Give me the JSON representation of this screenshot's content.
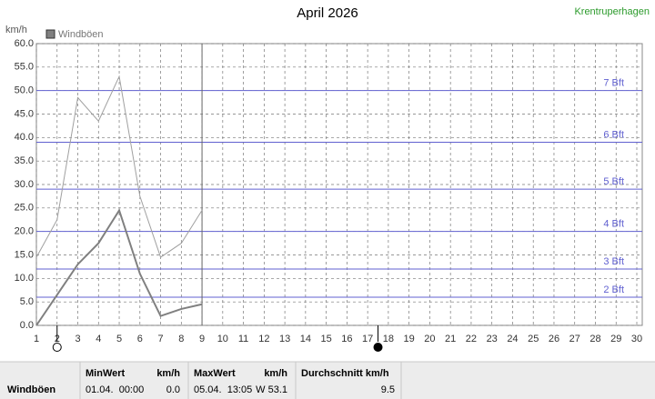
{
  "chart_data": {
    "type": "line",
    "title": "April 2026",
    "station": "Krentruperhagen",
    "y_label": "km/h",
    "x": [
      1,
      2,
      3,
      4,
      5,
      6,
      7,
      8,
      9
    ],
    "series": [
      {
        "name": "Windböen",
        "color": "#808080",
        "width": 2,
        "values": [
          0,
          6.5,
          13,
          17.5,
          24.5,
          11,
          2,
          3.5,
          4.5
        ]
      },
      {
        "color": "#a0a0a0",
        "width": 1,
        "values": [
          14.5,
          22.5,
          48.5,
          43.5,
          53,
          27.5,
          14.5,
          17.5,
          24.5
        ]
      }
    ],
    "xlim": [
      1,
      30
    ],
    "xticks": [
      1,
      2,
      3,
      4,
      5,
      6,
      7,
      8,
      9,
      10,
      11,
      12,
      13,
      14,
      15,
      16,
      17,
      18,
      19,
      20,
      21,
      22,
      23,
      24,
      25,
      26,
      27,
      28,
      29,
      30
    ],
    "ylim": [
      0,
      60
    ],
    "yticks": [
      {
        "value": 0,
        "label": "0.0"
      },
      {
        "value": 5,
        "label": "5.0"
      },
      {
        "value": 10,
        "label": "10.0"
      },
      {
        "value": 15,
        "label": "15.0"
      },
      {
        "value": 20,
        "label": "20.0"
      },
      {
        "value": 25,
        "label": "25.0"
      },
      {
        "value": 30,
        "label": "30.0"
      },
      {
        "value": 35,
        "label": "35.0"
      },
      {
        "value": 40,
        "label": "40.0"
      },
      {
        "value": 45,
        "label": "45.0"
      },
      {
        "value": 50,
        "label": "50.0"
      },
      {
        "value": 55,
        "label": "55.0"
      },
      {
        "value": 60,
        "label": "60.0"
      }
    ],
    "grid": true,
    "bft_lines": [
      {
        "value": 6,
        "label": "2 Bft"
      },
      {
        "value": 12,
        "label": "3 Bft"
      },
      {
        "value": 20,
        "label": "4 Bft"
      },
      {
        "value": 29,
        "label": "5 Bft"
      },
      {
        "value": 39,
        "label": "6 Bft"
      },
      {
        "value": 50,
        "label": "7 Bft"
      }
    ],
    "bft_color": "#6060d0",
    "current_day": 9,
    "moon_markers": [
      {
        "x": 2,
        "filled": false
      },
      {
        "x": 17.5,
        "filled": true
      }
    ]
  },
  "stats": {
    "row_label": "Windböen",
    "min": {
      "header": "MinWert",
      "unit": "km/h",
      "date": "01.04.  00:00",
      "value": "0.0"
    },
    "max": {
      "header": "MaxWert",
      "unit": "km/h",
      "date": "05.04.  13:05",
      "value": "W 53.1"
    },
    "avg": {
      "header": "Durchschnitt km/h",
      "value": "9.5"
    }
  }
}
